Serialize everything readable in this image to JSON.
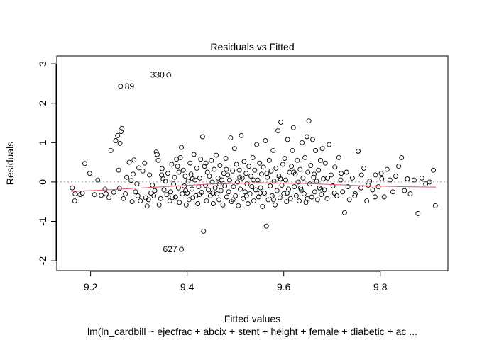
{
  "chart_data": {
    "type": "scatter",
    "title": "Residuals vs Fitted",
    "xlabel": "Fitted values",
    "ylabel": "Residuals",
    "subtitle": "lm(ln_cardbill ~ ejecfrac + abcix + stent + height + female + diabetic + ac ...",
    "xlim": [
      9.13,
      9.94
    ],
    "ylim": [
      -2.25,
      3.2
    ],
    "x_ticks": [
      9.2,
      9.4,
      9.6,
      9.8
    ],
    "x_tick_labels": [
      "9.2",
      "9.4",
      "9.6",
      "9.8"
    ],
    "y_ticks": [
      -2,
      -1,
      0,
      1,
      2,
      3
    ],
    "y_tick_labels": [
      "-2",
      "-1",
      "0",
      "1",
      "2",
      "3"
    ],
    "reference_line_y": 0,
    "colors": {
      "points": "#000000",
      "smooth": "#df536b",
      "reference": "#9e9e9e"
    },
    "labeled_points": [
      {
        "label": "330",
        "x": 9.362,
        "y": 2.72
      },
      {
        "label": "89",
        "x": 9.262,
        "y": 2.43
      },
      {
        "label": "627",
        "x": 9.388,
        "y": -1.71
      }
    ],
    "smooth_line": {
      "x": [
        9.16,
        9.25,
        9.35,
        9.45,
        9.55,
        9.65,
        9.75,
        9.85,
        9.915
      ],
      "y": [
        -0.24,
        -0.19,
        -0.12,
        -0.05,
        -0.02,
        -0.04,
        -0.09,
        -0.12,
        -0.13
      ]
    },
    "points": [
      [
        9.162,
        -0.15
      ],
      [
        9.167,
        -0.48
      ],
      [
        9.178,
        -0.32
      ],
      [
        9.183,
        -0.28
      ],
      [
        9.188,
        0.47
      ],
      [
        9.198,
        0.22
      ],
      [
        9.208,
        -0.32
      ],
      [
        9.222,
        -0.34
      ],
      [
        9.232,
        -0.3
      ],
      [
        9.238,
        -0.4
      ],
      [
        9.242,
        0.8
      ],
      [
        9.248,
        -0.26
      ],
      [
        9.252,
        1.05
      ],
      [
        9.256,
        1.18
      ],
      [
        9.261,
        0.98
      ],
      [
        9.263,
        1.28
      ],
      [
        9.265,
        1.36
      ],
      [
        9.258,
        0.3
      ],
      [
        9.26,
        -0.16
      ],
      [
        9.268,
        -0.42
      ],
      [
        9.272,
        -0.3
      ],
      [
        9.28,
        0.5
      ],
      [
        9.284,
        0.04
      ],
      [
        9.286,
        -0.5
      ],
      [
        9.288,
        0.2
      ],
      [
        9.29,
        0.56
      ],
      [
        9.293,
        -0.25
      ],
      [
        9.296,
        -0.05
      ],
      [
        9.3,
        0.36
      ],
      [
        9.303,
        -0.48
      ],
      [
        9.308,
        0.28
      ],
      [
        9.312,
        0.48
      ],
      [
        9.314,
        -0.4
      ],
      [
        9.317,
        -0.61
      ],
      [
        9.32,
        -0.45
      ],
      [
        9.322,
        0.18
      ],
      [
        9.325,
        -0.28
      ],
      [
        9.328,
        -0.08
      ],
      [
        9.331,
        -0.35
      ],
      [
        9.336,
        0.76
      ],
      [
        9.338,
        0.7
      ],
      [
        9.34,
        0.55
      ],
      [
        9.342,
        -0.58
      ],
      [
        9.345,
        -0.42
      ],
      [
        9.348,
        0.34
      ],
      [
        9.35,
        0.08
      ],
      [
        9.352,
        -0.2
      ],
      [
        9.355,
        0.02
      ],
      [
        9.358,
        -0.32
      ],
      [
        9.36,
        0.22
      ],
      [
        9.364,
        -0.48
      ],
      [
        9.366,
        -0.25
      ],
      [
        9.368,
        0.45
      ],
      [
        9.372,
        -0.05
      ],
      [
        9.374,
        0.12
      ],
      [
        9.376,
        -0.38
      ],
      [
        9.378,
        0.58
      ],
      [
        9.38,
        0.4
      ],
      [
        9.382,
        -0.15
      ],
      [
        9.384,
        -0.52
      ],
      [
        9.386,
        0.62
      ],
      [
        9.388,
        0.88
      ],
      [
        9.39,
        -0.3
      ],
      [
        9.392,
        0.3
      ],
      [
        9.394,
        -0.1
      ],
      [
        9.396,
        0.15
      ],
      [
        9.398,
        -0.58
      ],
      [
        9.4,
        -0.28
      ],
      [
        9.402,
        0.02
      ],
      [
        9.404,
        -0.45
      ],
      [
        9.406,
        0.48
      ],
      [
        9.408,
        0.2
      ],
      [
        9.41,
        -0.18
      ],
      [
        9.412,
        -0.4
      ],
      [
        9.414,
        0.7
      ],
      [
        9.416,
        0.05
      ],
      [
        9.418,
        -0.35
      ],
      [
        9.42,
        0.35
      ],
      [
        9.422,
        -0.55
      ],
      [
        9.424,
        -0.12
      ],
      [
        9.426,
        0.1
      ],
      [
        9.428,
        0.58
      ],
      [
        9.43,
        -0.26
      ],
      [
        9.432,
        1.15
      ],
      [
        9.434,
        -1.25
      ],
      [
        9.436,
        0.4
      ],
      [
        9.438,
        -0.08
      ],
      [
        9.44,
        -0.48
      ],
      [
        9.442,
        0.25
      ],
      [
        9.444,
        -0.2
      ],
      [
        9.446,
        0.15
      ],
      [
        9.448,
        -0.35
      ],
      [
        9.45,
        0.55
      ],
      [
        9.452,
        0.0
      ],
      [
        9.454,
        -0.55
      ],
      [
        9.456,
        0.32
      ],
      [
        9.458,
        -0.15
      ],
      [
        9.46,
        0.68
      ],
      [
        9.462,
        -0.3
      ],
      [
        9.464,
        0.1
      ],
      [
        9.466,
        -0.45
      ],
      [
        9.468,
        0.42
      ],
      [
        9.47,
        -0.22
      ],
      [
        9.472,
        0.05
      ],
      [
        9.474,
        -0.58
      ],
      [
        9.476,
        0.22
      ],
      [
        9.478,
        -0.1
      ],
      [
        9.48,
        0.6
      ],
      [
        9.482,
        -0.38
      ],
      [
        9.484,
        0.18
      ],
      [
        9.486,
        -0.25
      ],
      [
        9.488,
        0.05
      ],
      [
        9.49,
        1.12
      ],
      [
        9.492,
        -0.5
      ],
      [
        9.494,
        0.28
      ],
      [
        9.496,
        -0.12
      ],
      [
        9.498,
        0.85
      ],
      [
        9.5,
        -0.35
      ],
      [
        9.502,
        0.45
      ],
      [
        9.504,
        0.0
      ],
      [
        9.506,
        -0.6
      ],
      [
        9.508,
        0.3
      ],
      [
        9.51,
        -0.18
      ],
      [
        9.512,
        1.18
      ],
      [
        9.514,
        0.1
      ],
      [
        9.516,
        -0.42
      ],
      [
        9.518,
        0.52
      ],
      [
        9.52,
        -0.25
      ],
      [
        9.522,
        0.22
      ],
      [
        9.524,
        -0.05
      ],
      [
        9.526,
        -0.55
      ],
      [
        9.528,
        0.4
      ],
      [
        9.53,
        -0.3
      ],
      [
        9.532,
        0.15
      ],
      [
        9.534,
        -0.12
      ],
      [
        9.536,
        0.62
      ],
      [
        9.538,
        -0.48
      ],
      [
        9.54,
        0.3
      ],
      [
        9.542,
        -0.2
      ],
      [
        9.544,
        0.95
      ],
      [
        9.546,
        0.05
      ],
      [
        9.548,
        -0.38
      ],
      [
        9.55,
        0.48
      ],
      [
        9.552,
        -0.15
      ],
      [
        9.554,
        0.2
      ],
      [
        9.556,
        -0.62
      ],
      [
        9.558,
        0.38
      ],
      [
        9.56,
        -0.28
      ],
      [
        9.562,
        1.05
      ],
      [
        9.564,
        -1.12
      ],
      [
        9.566,
        0.12
      ],
      [
        9.568,
        -0.45
      ],
      [
        9.57,
        0.55
      ],
      [
        9.572,
        -0.1
      ],
      [
        9.574,
        0.28
      ],
      [
        9.576,
        -0.35
      ],
      [
        9.578,
        0.8
      ],
      [
        9.58,
        0.02
      ],
      [
        9.582,
        -0.58
      ],
      [
        9.584,
        0.35
      ],
      [
        9.586,
        -0.22
      ],
      [
        9.588,
        1.3
      ],
      [
        9.59,
        0.15
      ],
      [
        9.592,
        -0.4
      ],
      [
        9.594,
        1.52
      ],
      [
        9.596,
        -0.08
      ],
      [
        9.598,
        0.45
      ],
      [
        9.6,
        -0.3
      ],
      [
        9.602,
        0.6
      ],
      [
        9.604,
        0.05
      ],
      [
        9.606,
        -0.5
      ],
      [
        9.608,
        1.08
      ],
      [
        9.61,
        -0.18
      ],
      [
        9.612,
        0.25
      ],
      [
        9.614,
        -0.42
      ],
      [
        9.616,
        0.4
      ],
      [
        9.618,
        0.8
      ],
      [
        9.62,
        1.38
      ],
      [
        9.622,
        -0.12
      ],
      [
        9.624,
        0.2
      ],
      [
        9.626,
        -0.35
      ],
      [
        9.628,
        0.55
      ],
      [
        9.63,
        0.0
      ],
      [
        9.632,
        -0.48
      ],
      [
        9.634,
        0.32
      ],
      [
        9.636,
        -0.2
      ],
      [
        9.638,
        1.0
      ],
      [
        9.64,
        0.1
      ],
      [
        9.642,
        -0.3
      ],
      [
        9.644,
        0.62
      ],
      [
        9.646,
        -0.52
      ],
      [
        9.648,
        1.15
      ],
      [
        9.65,
        0.25
      ],
      [
        9.652,
        1.55
      ],
      [
        9.654,
        -0.05
      ],
      [
        9.656,
        0.42
      ],
      [
        9.658,
        -0.38
      ],
      [
        9.66,
        1.08
      ],
      [
        9.662,
        0.12
      ],
      [
        9.664,
        -0.25
      ],
      [
        9.666,
        0.8
      ],
      [
        9.668,
        0.02
      ],
      [
        9.67,
        -0.45
      ],
      [
        9.672,
        0.3
      ],
      [
        9.674,
        -0.15
      ],
      [
        9.676,
        0.55
      ],
      [
        9.678,
        -0.32
      ],
      [
        9.68,
        0.85
      ],
      [
        9.682,
        0.08
      ],
      [
        9.684,
        -0.2
      ],
      [
        9.686,
        0.48
      ],
      [
        9.69,
        -0.42
      ],
      [
        9.694,
        0.95
      ],
      [
        9.698,
        0.18
      ],
      [
        9.702,
        -0.1
      ],
      [
        9.706,
        0.38
      ],
      [
        9.71,
        -0.35
      ],
      [
        9.714,
        0.62
      ],
      [
        9.718,
        0.05
      ],
      [
        9.722,
        -0.25
      ],
      [
        9.726,
        -0.78
      ],
      [
        9.73,
        0.25
      ],
      [
        9.736,
        -0.45
      ],
      [
        9.742,
        0.1
      ],
      [
        9.748,
        -0.3
      ],
      [
        9.754,
        0.78
      ],
      [
        9.76,
        -0.15
      ],
      [
        9.766,
        0.35
      ],
      [
        9.772,
        -0.48
      ],
      [
        9.778,
        0.02
      ],
      [
        9.784,
        -0.2
      ],
      [
        9.79,
        0.18
      ],
      [
        9.796,
        -0.12
      ],
      [
        9.802,
        0.22
      ],
      [
        9.808,
        -0.38
      ],
      [
        9.814,
        0.32
      ],
      [
        9.82,
        0.05
      ],
      [
        9.826,
        -0.25
      ],
      [
        9.832,
        0.15
      ],
      [
        9.838,
        0.4
      ],
      [
        9.844,
        0.62
      ],
      [
        9.85,
        -0.22
      ],
      [
        9.856,
        0.08
      ],
      [
        9.862,
        -0.3
      ],
      [
        9.87,
        0.05
      ],
      [
        9.878,
        -0.8
      ],
      [
        9.886,
        0.1
      ],
      [
        9.894,
        -0.05
      ],
      [
        9.902,
        0.0
      ],
      [
        9.91,
        0.3
      ],
      [
        9.914,
        -0.6
      ],
      [
        9.168,
        -0.3
      ],
      [
        9.215,
        0.05
      ],
      [
        9.23,
        -0.18
      ],
      [
        9.275,
        0.12
      ],
      [
        9.298,
        -0.35
      ],
      [
        9.333,
        -0.22
      ],
      [
        9.347,
        0.18
      ],
      [
        9.369,
        -0.4
      ],
      [
        9.383,
        0.25
      ],
      [
        9.397,
        -0.22
      ],
      [
        9.411,
        0.08
      ],
      [
        9.425,
        -0.32
      ],
      [
        9.439,
        0.48
      ],
      [
        9.453,
        -0.28
      ],
      [
        9.467,
        -0.05
      ],
      [
        9.481,
        0.32
      ],
      [
        9.495,
        -0.45
      ],
      [
        9.509,
        0.12
      ],
      [
        9.523,
        -0.35
      ],
      [
        9.537,
        0.05
      ],
      [
        9.551,
        -0.28
      ],
      [
        9.565,
        0.22
      ],
      [
        9.579,
        -0.45
      ],
      [
        9.593,
        0.08
      ],
      [
        9.607,
        -0.28
      ],
      [
        9.621,
        0.25
      ],
      [
        9.635,
        -0.15
      ],
      [
        9.649,
        -0.42
      ],
      [
        9.663,
        0.2
      ],
      [
        9.677,
        -0.18
      ],
      [
        9.691,
        0.1
      ],
      [
        9.705,
        -0.28
      ],
      [
        9.719,
        0.22
      ],
      [
        9.733,
        -0.12
      ],
      [
        9.747,
        -0.35
      ],
      [
        9.761,
        0.18
      ],
      [
        9.775,
        -0.08
      ],
      [
        9.789,
        -0.38
      ],
      [
        9.803,
        0.08
      ]
    ]
  }
}
